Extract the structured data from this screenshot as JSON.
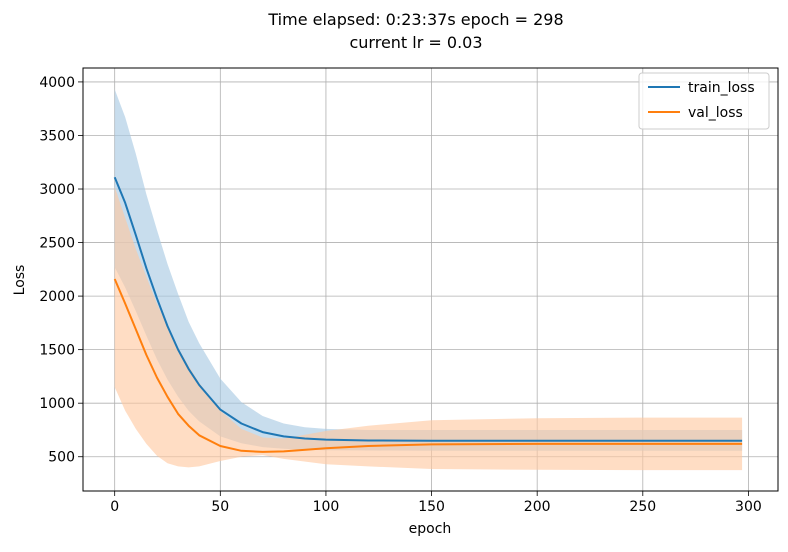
{
  "chart_data": {
    "type": "line",
    "title": "Time elapsed: 0:23:37s epoch = 298",
    "subtitle": "current lr = 0.03",
    "xlabel": "epoch",
    "ylabel": "Loss",
    "xlim": [
      -15,
      314
    ],
    "ylim": [
      180,
      4130
    ],
    "xticks": [
      0,
      50,
      100,
      150,
      200,
      250,
      300
    ],
    "yticks": [
      500,
      1000,
      1500,
      2000,
      2500,
      3000,
      3500,
      4000
    ],
    "grid": true,
    "legend_position": "top-right",
    "series": [
      {
        "name": "train_loss",
        "color": "#1f77b4",
        "band_color": "#a6c8e2",
        "x": [
          0,
          5,
          10,
          15,
          20,
          25,
          30,
          35,
          40,
          50,
          60,
          70,
          80,
          90,
          100,
          120,
          150,
          200,
          250,
          297
        ],
        "values": [
          3110,
          2870,
          2570,
          2260,
          1980,
          1720,
          1500,
          1320,
          1170,
          940,
          810,
          730,
          690,
          670,
          660,
          652,
          650,
          650,
          650,
          650
        ],
        "lower": [
          2270,
          2080,
          1860,
          1630,
          1410,
          1220,
          1060,
          930,
          830,
          690,
          625,
          590,
          575,
          565,
          560,
          558,
          555,
          555,
          555,
          555
        ],
        "upper": [
          3930,
          3670,
          3330,
          2950,
          2620,
          2300,
          2020,
          1760,
          1560,
          1230,
          1010,
          880,
          810,
          775,
          760,
          750,
          750,
          750,
          750,
          750
        ]
      },
      {
        "name": "val_loss",
        "color": "#ff7f0e",
        "band_color": "#ffc89f",
        "x": [
          0,
          5,
          10,
          15,
          20,
          25,
          30,
          35,
          40,
          50,
          60,
          70,
          80,
          100,
          120,
          150,
          200,
          250,
          297
        ],
        "values": [
          2160,
          1930,
          1690,
          1450,
          1240,
          1060,
          900,
          790,
          700,
          600,
          555,
          545,
          550,
          580,
          600,
          615,
          620,
          620,
          620
        ],
        "lower": [
          1150,
          930,
          760,
          620,
          510,
          440,
          410,
          400,
          410,
          460,
          500,
          515,
          480,
          430,
          410,
          385,
          378,
          375,
          375
        ],
        "upper": [
          3020,
          2730,
          2440,
          2180,
          1930,
          1720,
          1520,
          1350,
          1190,
          930,
          760,
          680,
          670,
          740,
          790,
          840,
          860,
          865,
          865
        ]
      }
    ]
  }
}
